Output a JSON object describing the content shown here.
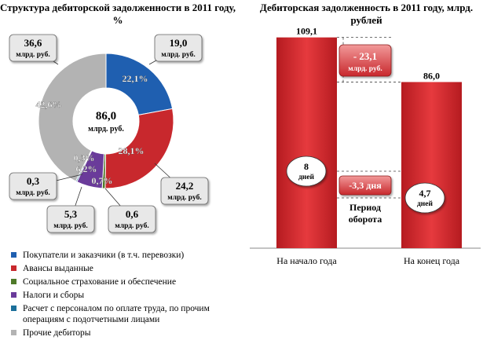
{
  "chart_data": [
    {
      "type": "pie",
      "variant": "donut",
      "title": "Структура дебиторской задолженности в 2011 году, %",
      "center_label": {
        "value": "86,0",
        "unit": "млрд. руб."
      },
      "slices": [
        {
          "name": "Покупатели и заказчики (в т.ч. перевозки)",
          "share": 22.1,
          "pct_label": "22,1%",
          "value_label": "19,0",
          "unit": "млрд. руб.",
          "color": "#1f5fb0"
        },
        {
          "name": "Авансы выданные",
          "share": 28.1,
          "pct_label": "28,1%",
          "value_label": "24,2",
          "unit": "млрд. руб.",
          "color": "#c8282d"
        },
        {
          "name": "Социальное страхование и обеспечение",
          "share": 0.7,
          "pct_label": "0,7%",
          "value_label": "0,6",
          "unit": "млрд. руб.",
          "color": "#4f7a2a"
        },
        {
          "name": "Налоги и сборы",
          "share": 6.2,
          "pct_label": "6,2%",
          "value_label": "5,3",
          "unit": "млрд. руб.",
          "color": "#6a3b9a"
        },
        {
          "name": "Расчет с персоналом по оплате труда, по прочим операциям с подотчетными лицами",
          "share": 0.3,
          "pct_label": "0,3%",
          "value_label": "0,3",
          "unit": "млрд. руб.",
          "color": "#1b6f9a"
        },
        {
          "name": "Прочие дебиторы",
          "share": 42.6,
          "pct_label": "42,6%",
          "value_label": "36,6",
          "unit": "млрд. руб.",
          "color": "#b3b3b3"
        }
      ]
    },
    {
      "type": "bar",
      "title": "Дебиторская задолженность в 2011 году, млрд. рублей",
      "categories": [
        "На начало года",
        "На конец года"
      ],
      "values": [
        109.1,
        86.0
      ],
      "value_labels": [
        "109,1",
        "86,0"
      ],
      "ylim": [
        0,
        115
      ],
      "bar_color": "#d8252a",
      "turnover_period": {
        "label": "Период оборота",
        "unit": "дней",
        "values": [
          "8",
          "4,7"
        ]
      },
      "annotations": {
        "change_value": "- 23,1",
        "change_unit": "млрд. руб.",
        "change_period": "-3,3 дня"
      }
    }
  ]
}
